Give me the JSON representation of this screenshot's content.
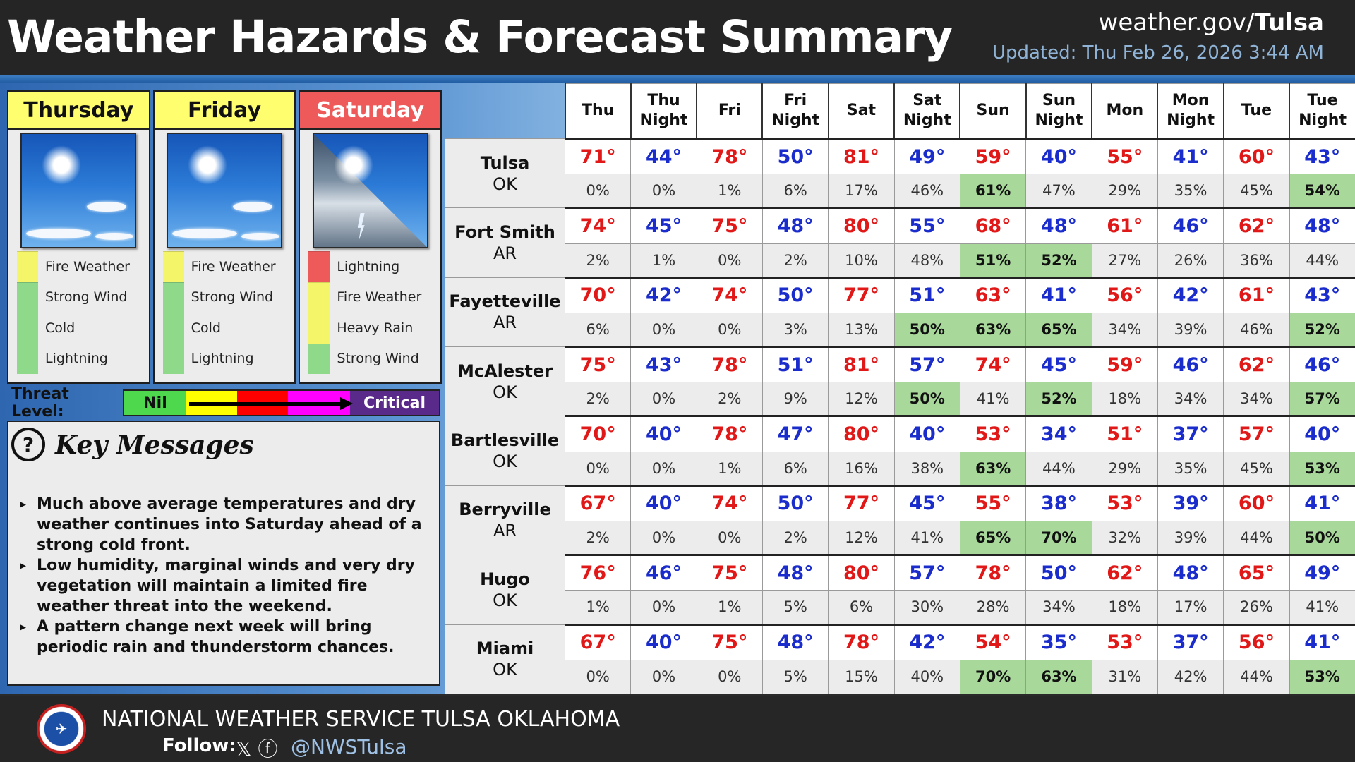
{
  "header": {
    "title": "Weather Hazards & Forecast Summary",
    "url_prefix": "weather.gov/",
    "url_office": "Tulsa",
    "updated": "Updated: Thu Feb 26, 2026 3:44 AM"
  },
  "days": [
    {
      "name": "Thursday",
      "header_color": "#fefe6e",
      "image": "sunny-icon",
      "hazards": [
        {
          "label": "Fire Weather",
          "color": "#f5f56a"
        },
        {
          "label": "Strong Wind",
          "color": "#8ed98a"
        },
        {
          "label": "Cold",
          "color": "#8ed98a"
        },
        {
          "label": "Lightning",
          "color": "#8ed98a"
        }
      ]
    },
    {
      "name": "Friday",
      "header_color": "#fefe6e",
      "image": "sunny-icon",
      "hazards": [
        {
          "label": "Fire Weather",
          "color": "#f5f56a"
        },
        {
          "label": "Strong Wind",
          "color": "#8ed98a"
        },
        {
          "label": "Cold",
          "color": "#8ed98a"
        },
        {
          "label": "Lightning",
          "color": "#8ed98a"
        }
      ]
    },
    {
      "name": "Saturday",
      "header_color": "#ee5a5a",
      "image": "sun-and-thunderstorm-icon",
      "hazards": [
        {
          "label": "Lightning",
          "color": "#ee5a5a"
        },
        {
          "label": "Fire Weather",
          "color": "#f5f56a"
        },
        {
          "label": "Heavy Rain",
          "color": "#f5f56a"
        },
        {
          "label": "Strong Wind",
          "color": "#8ed98a"
        }
      ]
    }
  ],
  "threat": {
    "label": "Threat Level:",
    "min_label": "Nil",
    "max_label": "Critical",
    "colors": [
      "#4ed84e",
      "#ffff00",
      "#ff0000",
      "#ff00ff",
      "#5a2a8a"
    ]
  },
  "key_messages": {
    "title": "Key Messages",
    "items": [
      "Much above average temperatures and dry weather continues into Saturday ahead of a strong cold front.",
      "Low humidity, marginal winds and very dry vegetation will maintain a limited fire weather threat into the weekend.",
      "A pattern change next week will bring periodic rain and thunderstorm chances."
    ]
  },
  "forecast": {
    "periods": [
      {
        "line1": "Thu",
        "line2": ""
      },
      {
        "line1": "Thu",
        "line2": "Night"
      },
      {
        "line1": "Fri",
        "line2": ""
      },
      {
        "line1": "Fri",
        "line2": "Night"
      },
      {
        "line1": "Sat",
        "line2": ""
      },
      {
        "line1": "Sat",
        "line2": "Night"
      },
      {
        "line1": "Sun",
        "line2": ""
      },
      {
        "line1": "Sun",
        "line2": "Night"
      },
      {
        "line1": "Mon",
        "line2": ""
      },
      {
        "line1": "Mon",
        "line2": "Night"
      },
      {
        "line1": "Tue",
        "line2": ""
      },
      {
        "line1": "Tue",
        "line2": "Night"
      }
    ],
    "cities": [
      {
        "name": "Tulsa",
        "state": "OK",
        "temps": [
          "71°",
          "44°",
          "78°",
          "50°",
          "81°",
          "49°",
          "59°",
          "40°",
          "55°",
          "41°",
          "60°",
          "43°"
        ],
        "pops": [
          "0%",
          "0%",
          "1%",
          "6%",
          "17%",
          "46%",
          "61%",
          "47%",
          "29%",
          "35%",
          "45%",
          "54%"
        ],
        "highlight": [
          false,
          false,
          false,
          false,
          false,
          false,
          true,
          false,
          false,
          false,
          false,
          true
        ]
      },
      {
        "name": "Fort Smith",
        "state": "AR",
        "temps": [
          "74°",
          "45°",
          "75°",
          "48°",
          "80°",
          "55°",
          "68°",
          "48°",
          "61°",
          "46°",
          "62°",
          "48°"
        ],
        "pops": [
          "2%",
          "1%",
          "0%",
          "2%",
          "10%",
          "48%",
          "51%",
          "52%",
          "27%",
          "26%",
          "36%",
          "44%"
        ],
        "highlight": [
          false,
          false,
          false,
          false,
          false,
          false,
          true,
          true,
          false,
          false,
          false,
          false
        ]
      },
      {
        "name": "Fayetteville",
        "state": "AR",
        "temps": [
          "70°",
          "42°",
          "74°",
          "50°",
          "77°",
          "51°",
          "63°",
          "41°",
          "56°",
          "42°",
          "61°",
          "43°"
        ],
        "pops": [
          "6%",
          "0%",
          "0%",
          "3%",
          "13%",
          "50%",
          "63%",
          "65%",
          "34%",
          "39%",
          "46%",
          "52%"
        ],
        "highlight": [
          false,
          false,
          false,
          false,
          false,
          true,
          true,
          true,
          false,
          false,
          false,
          true
        ]
      },
      {
        "name": "McAlester",
        "state": "OK",
        "temps": [
          "75°",
          "43°",
          "78°",
          "51°",
          "81°",
          "57°",
          "74°",
          "45°",
          "59°",
          "46°",
          "62°",
          "46°"
        ],
        "pops": [
          "2%",
          "0%",
          "2%",
          "9%",
          "12%",
          "50%",
          "41%",
          "52%",
          "18%",
          "34%",
          "34%",
          "57%"
        ],
        "highlight": [
          false,
          false,
          false,
          false,
          false,
          true,
          false,
          true,
          false,
          false,
          false,
          true
        ]
      },
      {
        "name": "Bartlesville",
        "state": "OK",
        "temps": [
          "70°",
          "40°",
          "78°",
          "47°",
          "80°",
          "40°",
          "53°",
          "34°",
          "51°",
          "37°",
          "57°",
          "40°"
        ],
        "pops": [
          "0%",
          "0%",
          "1%",
          "6%",
          "16%",
          "38%",
          "63%",
          "44%",
          "29%",
          "35%",
          "45%",
          "53%"
        ],
        "highlight": [
          false,
          false,
          false,
          false,
          false,
          false,
          true,
          false,
          false,
          false,
          false,
          true
        ]
      },
      {
        "name": "Berryville",
        "state": "AR",
        "temps": [
          "67°",
          "40°",
          "74°",
          "50°",
          "77°",
          "45°",
          "55°",
          "38°",
          "53°",
          "39°",
          "60°",
          "41°"
        ],
        "pops": [
          "2%",
          "0%",
          "0%",
          "2%",
          "12%",
          "41%",
          "65%",
          "70%",
          "32%",
          "39%",
          "44%",
          "50%"
        ],
        "highlight": [
          false,
          false,
          false,
          false,
          false,
          false,
          true,
          true,
          false,
          false,
          false,
          true
        ]
      },
      {
        "name": "Hugo",
        "state": "OK",
        "temps": [
          "76°",
          "46°",
          "75°",
          "48°",
          "80°",
          "57°",
          "78°",
          "50°",
          "62°",
          "48°",
          "65°",
          "49°"
        ],
        "pops": [
          "1%",
          "0%",
          "1%",
          "5%",
          "6%",
          "30%",
          "28%",
          "34%",
          "18%",
          "17%",
          "26%",
          "41%"
        ],
        "highlight": [
          false,
          false,
          false,
          false,
          false,
          false,
          false,
          false,
          false,
          false,
          false,
          false
        ]
      },
      {
        "name": "Miami",
        "state": "OK",
        "temps": [
          "67°",
          "40°",
          "75°",
          "48°",
          "78°",
          "42°",
          "54°",
          "35°",
          "53°",
          "37°",
          "56°",
          "41°"
        ],
        "pops": [
          "0%",
          "0%",
          "0%",
          "5%",
          "15%",
          "40%",
          "70%",
          "63%",
          "31%",
          "42%",
          "44%",
          "53%"
        ],
        "highlight": [
          false,
          false,
          false,
          false,
          false,
          false,
          true,
          true,
          false,
          false,
          false,
          true
        ]
      }
    ],
    "colors": {
      "high": "#e01818",
      "low": "#1a2ccc",
      "pop_highlight": "#a8d89a"
    }
  },
  "footer": {
    "office": "NATIONAL WEATHER SERVICE TULSA OKLAHOMA",
    "follow_label": "Follow:",
    "handle": "@NWSTulsa",
    "social_icons": [
      "x-icon",
      "facebook-icon"
    ]
  }
}
